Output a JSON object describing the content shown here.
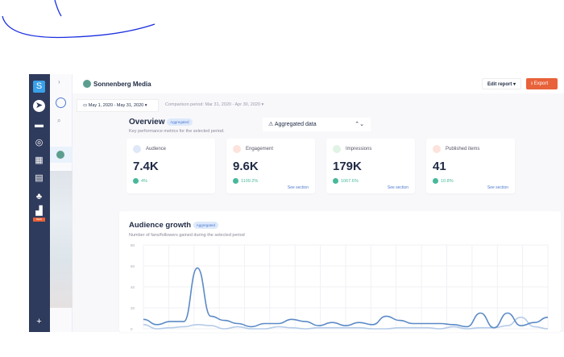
{
  "app": {
    "title": "Sonnenberg Media",
    "edit_report": "Edit report ▾",
    "export": "Export"
  },
  "sidebar": {
    "workspace_initial": "S",
    "icons": [
      "send-icon",
      "inbox-icon",
      "listening-icon",
      "calendar-icon",
      "tasks-icon",
      "people-icon",
      "reports-icon"
    ],
    "new_badge": "NEW",
    "add": "+"
  },
  "filters": {
    "date_range": "May 1, 2020 - May 31, 2020",
    "comparison": "Comparison period: Mar 31, 2020 - Apr 30, 2020"
  },
  "overview": {
    "title": "Overview",
    "badge": "Aggregated",
    "subtitle": "Key performance metrics for the selected period.",
    "selector": "Aggregated data"
  },
  "kpis": [
    {
      "label": "Audience",
      "value": "7.4K",
      "change": "4%",
      "color": "#dfe8f8",
      "link": ""
    },
    {
      "label": "Engagement",
      "value": "9.6K",
      "change": "1109.2%",
      "color": "#fde3dc",
      "link": "See section"
    },
    {
      "label": "Impressions",
      "value": "179K",
      "change": "1067.6%",
      "color": "#e1f3e4",
      "link": "See section"
    },
    {
      "label": "Published items",
      "value": "41",
      "change": "10.8%",
      "color": "#fde3dc",
      "link": "See section"
    }
  ],
  "growth": {
    "title": "Audience growth",
    "badge": "Aggregated",
    "subtitle": "Number of fans/followers gained during the selected period"
  },
  "chart_data": {
    "type": "line",
    "ylim": [
      0,
      80
    ],
    "yticks": [
      0,
      20,
      40,
      60,
      80
    ],
    "grid": true,
    "series": [
      {
        "color": "#5b8ac6",
        "values": [
          9,
          4,
          7,
          7,
          58,
          12,
          8,
          5,
          2,
          5,
          5,
          9,
          7,
          3,
          6,
          3,
          6,
          4,
          12,
          8,
          5,
          5,
          5,
          4,
          2,
          15,
          1,
          15,
          3,
          6,
          11
        ]
      },
      {
        "color": "#b5cbe8",
        "values": [
          4,
          0,
          1,
          2,
          4,
          3,
          0,
          2,
          0,
          0,
          2,
          1,
          0,
          1,
          1,
          1,
          1,
          0,
          0,
          1,
          1,
          1,
          0,
          2,
          0,
          1,
          1,
          3,
          11,
          2,
          0
        ]
      }
    ]
  }
}
